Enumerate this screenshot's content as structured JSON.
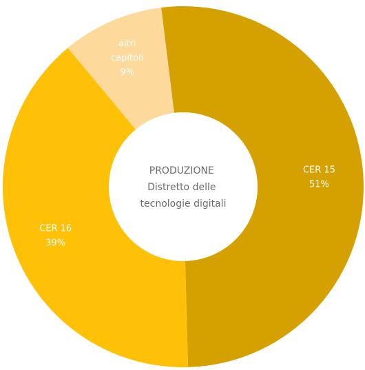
{
  "chart_data": {
    "type": "pie",
    "variant": "donut",
    "center_label": [
      "PRODUZIONE",
      "Distretto delle",
      "tecnologie digitali"
    ],
    "slices": [
      {
        "label": [
          "CER 15"
        ],
        "value": 51,
        "value_label": "51%",
        "color": "#D4A100"
      },
      {
        "label": [
          "CER 16"
        ],
        "value": 39,
        "value_label": "39%",
        "color": "#FFC107"
      },
      {
        "label": [
          "altri",
          "capitoli"
        ],
        "value": 9,
        "value_label": "9%",
        "color": "#FDD99B"
      }
    ]
  }
}
